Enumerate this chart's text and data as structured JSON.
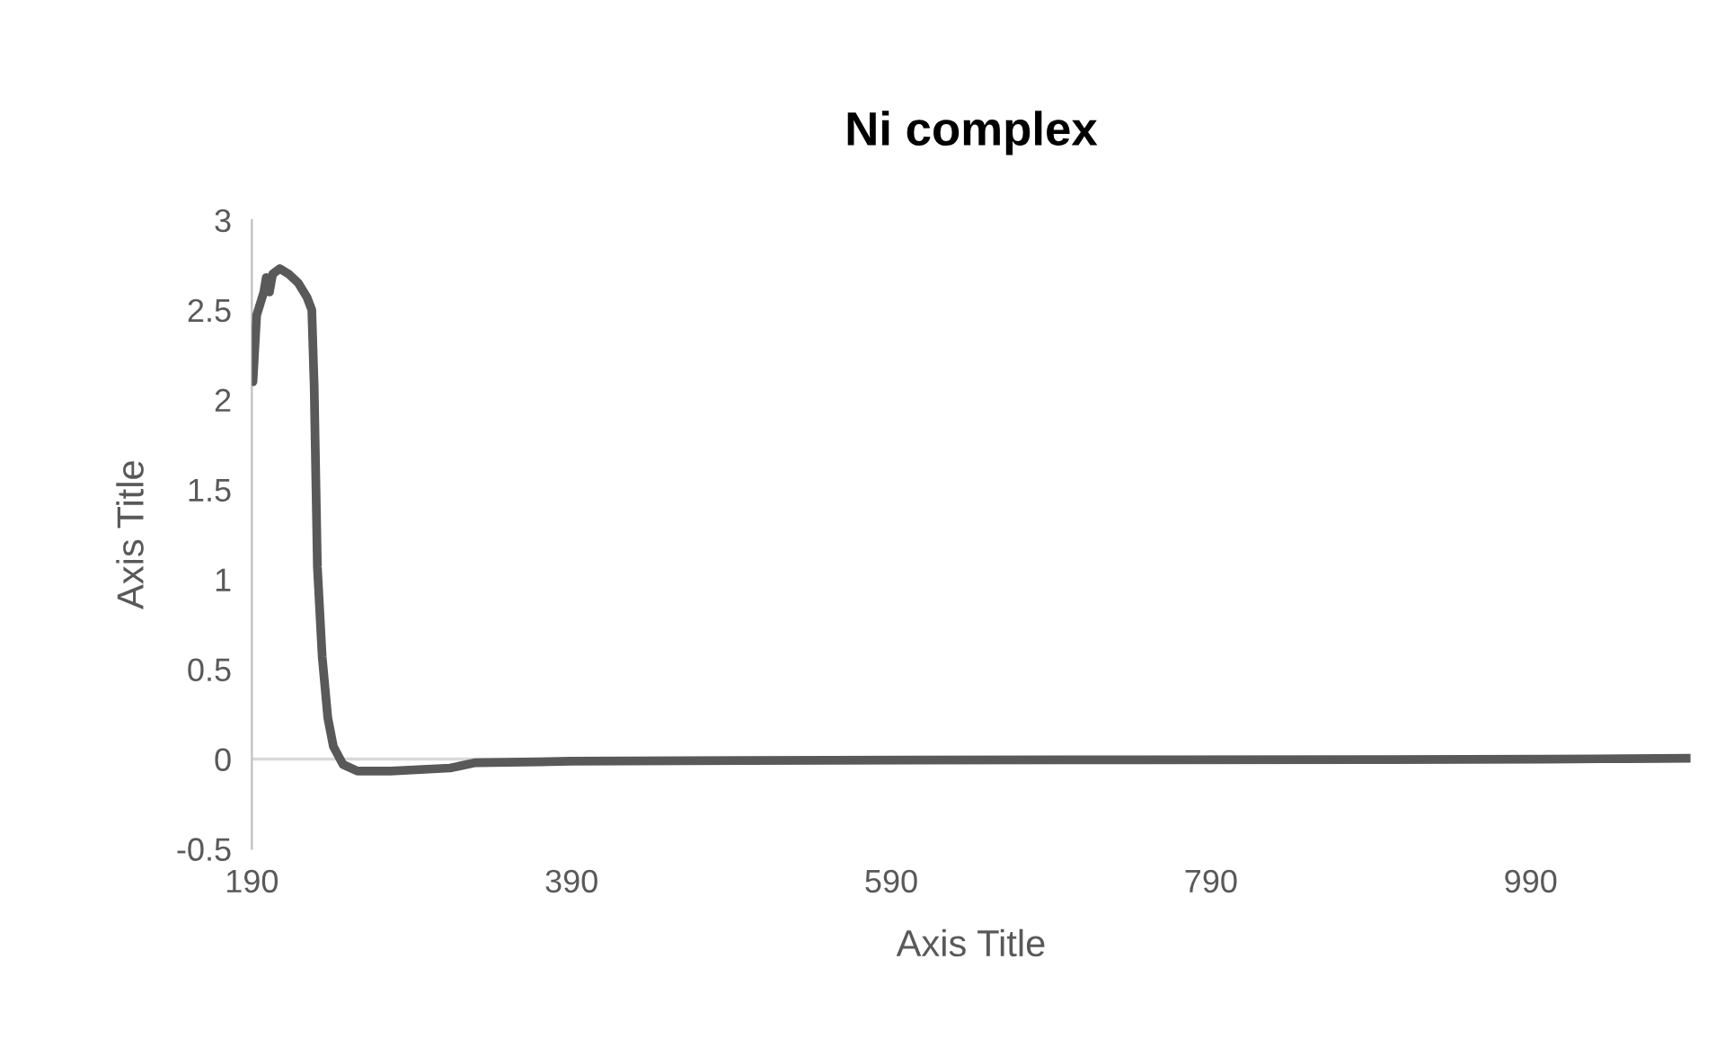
{
  "chart_data": {
    "type": "line",
    "title": "Ni complex",
    "xlabel": "Axis Title",
    "ylabel": "Axis Title",
    "xlim": [
      190,
      1090
    ],
    "xticks": [
      190,
      390,
      590,
      790,
      990
    ],
    "ylim": [
      -0.5,
      3
    ],
    "yticks": [
      -0.5,
      0,
      0.5,
      1,
      1.5,
      2,
      2.5,
      3
    ],
    "grid": false,
    "line_style": "solid",
    "ref_lines": [
      {
        "axis": "y",
        "value": 0,
        "color": "#d9d9d9"
      }
    ],
    "series": [
      {
        "color": "#595959",
        "x": [
          190.7,
          193,
          197.5,
          199,
          201,
          203,
          207.5,
          213,
          219,
          224.5,
          227.5,
          229,
          231,
          234,
          237.5,
          241,
          247,
          256,
          277,
          314,
          330,
          370,
          390,
          500,
          700,
          900,
          1000,
          1050,
          1090
        ],
        "values": [
          2.1,
          2.47,
          2.6,
          2.68,
          2.6,
          2.7,
          2.73,
          2.7,
          2.65,
          2.57,
          2.5,
          2.07,
          1.07,
          0.57,
          0.23,
          0.07,
          -0.03,
          -0.067,
          -0.067,
          -0.05,
          -0.02,
          -0.015,
          -0.012,
          -0.008,
          -0.004,
          -0.003,
          0,
          0.002,
          0.005
        ]
      }
    ]
  }
}
